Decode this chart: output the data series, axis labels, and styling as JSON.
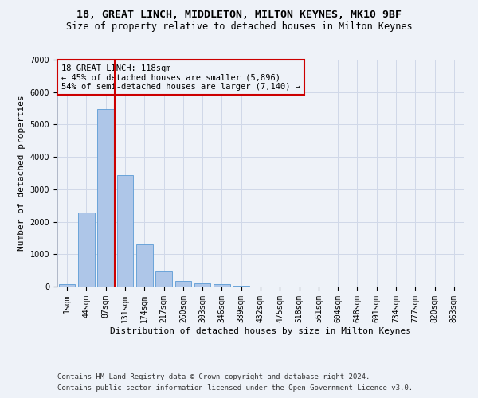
{
  "title1": "18, GREAT LINCH, MIDDLETON, MILTON KEYNES, MK10 9BF",
  "title2": "Size of property relative to detached houses in Milton Keynes",
  "xlabel": "Distribution of detached houses by size in Milton Keynes",
  "ylabel": "Number of detached properties",
  "footnote1": "Contains HM Land Registry data © Crown copyright and database right 2024.",
  "footnote2": "Contains public sector information licensed under the Open Government Licence v3.0.",
  "bar_labels": [
    "1sqm",
    "44sqm",
    "87sqm",
    "131sqm",
    "174sqm",
    "217sqm",
    "260sqm",
    "303sqm",
    "346sqm",
    "389sqm",
    "432sqm",
    "475sqm",
    "518sqm",
    "561sqm",
    "604sqm",
    "648sqm",
    "691sqm",
    "734sqm",
    "777sqm",
    "820sqm",
    "863sqm"
  ],
  "bar_values": [
    80,
    2280,
    5480,
    3430,
    1310,
    460,
    160,
    100,
    65,
    35,
    10,
    5,
    0,
    0,
    0,
    0,
    0,
    0,
    0,
    0,
    0
  ],
  "bar_color": "#aec6e8",
  "bar_edge_color": "#5b9bd5",
  "grid_color": "#d0d8e8",
  "background_color": "#eef2f8",
  "vline_color": "#cc0000",
  "annotation_text": "18 GREAT LINCH: 118sqm\n← 45% of detached houses are smaller (5,896)\n54% of semi-detached houses are larger (7,140) →",
  "annotation_box_color": "#cc0000",
  "ylim": [
    0,
    7000
  ],
  "title1_fontsize": 9.5,
  "title2_fontsize": 8.5,
  "xlabel_fontsize": 8,
  "ylabel_fontsize": 8,
  "tick_fontsize": 7,
  "annotation_fontsize": 7.5,
  "footnote_fontsize": 6.5
}
